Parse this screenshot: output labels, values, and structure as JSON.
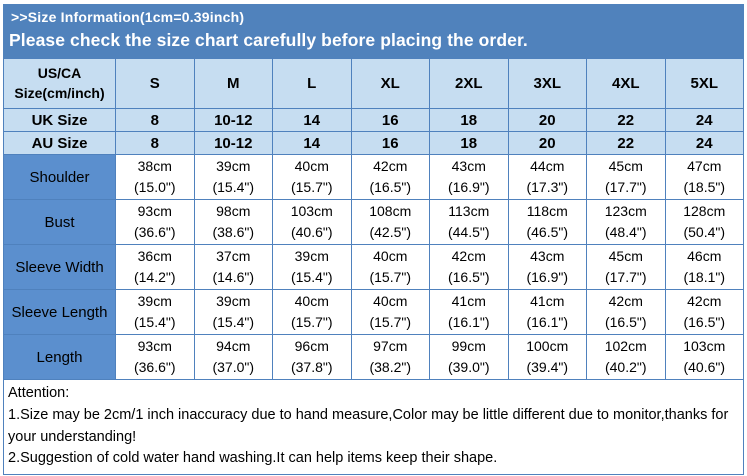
{
  "banner": {
    "line1": ">>Size Information(1cm=0.39inch)",
    "line2": "Please check the size chart carefully before placing the order."
  },
  "table": {
    "corner_header": "US/CA Size(cm/inch)",
    "size_headers": [
      "S",
      "M",
      "L",
      "XL",
      "2XL",
      "3XL",
      "4XL",
      "5XL"
    ],
    "region_rows": [
      {
        "label": "UK Size",
        "values": [
          "8",
          "10-12",
          "14",
          "16",
          "18",
          "20",
          "22",
          "24"
        ]
      },
      {
        "label": "AU Size",
        "values": [
          "8",
          "10-12",
          "14",
          "16",
          "18",
          "20",
          "22",
          "24"
        ]
      }
    ],
    "measurement_rows": [
      {
        "label": "Shoulder",
        "values": [
          {
            "cm": "38cm",
            "in": "(15.0\")"
          },
          {
            "cm": "39cm",
            "in": "(15.4\")"
          },
          {
            "cm": "40cm",
            "in": "(15.7\")"
          },
          {
            "cm": "42cm",
            "in": "(16.5\")"
          },
          {
            "cm": "43cm",
            "in": "(16.9\")"
          },
          {
            "cm": "44cm",
            "in": "(17.3\")"
          },
          {
            "cm": "45cm",
            "in": "(17.7\")"
          },
          {
            "cm": "47cm",
            "in": "(18.5\")"
          }
        ]
      },
      {
        "label": "Bust",
        "values": [
          {
            "cm": "93cm",
            "in": "(36.6\")"
          },
          {
            "cm": "98cm",
            "in": "(38.6\")"
          },
          {
            "cm": "103cm",
            "in": "(40.6\")"
          },
          {
            "cm": "108cm",
            "in": "(42.5\")"
          },
          {
            "cm": "113cm",
            "in": "(44.5\")"
          },
          {
            "cm": "118cm",
            "in": "(46.5\")"
          },
          {
            "cm": "123cm",
            "in": "(48.4\")"
          },
          {
            "cm": "128cm",
            "in": "(50.4\")"
          }
        ]
      },
      {
        "label": "Sleeve Width",
        "values": [
          {
            "cm": "36cm",
            "in": "(14.2\")"
          },
          {
            "cm": "37cm",
            "in": "(14.6\")"
          },
          {
            "cm": "39cm",
            "in": "(15.4\")"
          },
          {
            "cm": "40cm",
            "in": "(15.7\")"
          },
          {
            "cm": "42cm",
            "in": "(16.5\")"
          },
          {
            "cm": "43cm",
            "in": "(16.9\")"
          },
          {
            "cm": "45cm",
            "in": "(17.7\")"
          },
          {
            "cm": "46cm",
            "in": "(18.1\")"
          }
        ]
      },
      {
        "label": "Sleeve Length",
        "values": [
          {
            "cm": "39cm",
            "in": "(15.4\")"
          },
          {
            "cm": "39cm",
            "in": "(15.4\")"
          },
          {
            "cm": "40cm",
            "in": "(15.7\")"
          },
          {
            "cm": "40cm",
            "in": "(15.7\")"
          },
          {
            "cm": "41cm",
            "in": "(16.1\")"
          },
          {
            "cm": "41cm",
            "in": "(16.1\")"
          },
          {
            "cm": "42cm",
            "in": "(16.5\")"
          },
          {
            "cm": "42cm",
            "in": "(16.5\")"
          }
        ]
      },
      {
        "label": "Length",
        "values": [
          {
            "cm": "93cm",
            "in": "(36.6\")"
          },
          {
            "cm": "94cm",
            "in": "(37.0\")"
          },
          {
            "cm": "96cm",
            "in": "(37.8\")"
          },
          {
            "cm": "97cm",
            "in": "(38.2\")"
          },
          {
            "cm": "99cm",
            "in": "(39.0\")"
          },
          {
            "cm": "100cm",
            "in": "(39.4\")"
          },
          {
            "cm": "102cm",
            "in": "(40.2\")"
          },
          {
            "cm": "103cm",
            "in": "(40.6\")"
          }
        ]
      }
    ]
  },
  "attention": {
    "title": "Attention:",
    "note1": "1.Size may be 2cm/1 inch inaccuracy due to hand measure,Color may be little different due to monitor,thanks for your understanding!",
    "note2": "2.Suggestion of cold water hand washing.It can help items keep their shape."
  },
  "colors": {
    "banner_blue": "#5082bc",
    "light_blue": "#c6ddf1",
    "label_blue": "#5b8fce",
    "border_blue": "#4f81bd",
    "text": "#000000",
    "cell_background": "#ffffff"
  }
}
